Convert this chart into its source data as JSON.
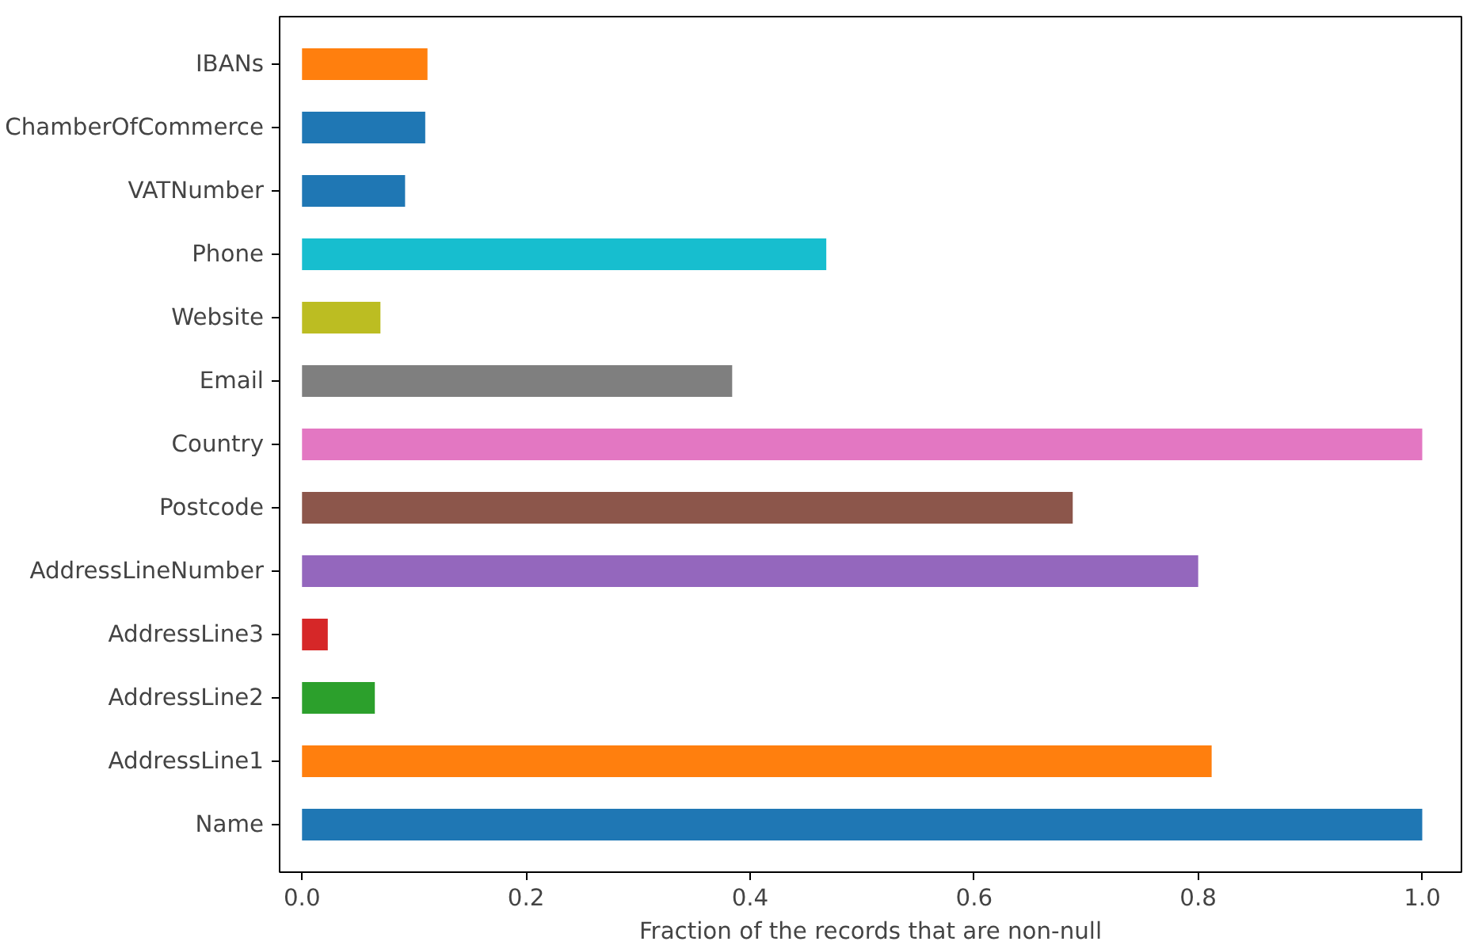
{
  "chart_data": {
    "type": "bar",
    "orientation": "horizontal",
    "xlabel": "Fraction of the records that are non-null",
    "categories": [
      "IBANs",
      "ChamberOfCommerce",
      "VATNumber",
      "Phone",
      "Website",
      "Email",
      "Country",
      "Postcode",
      "AddressLineNumber",
      "AddressLine3",
      "AddressLine2",
      "AddressLine1",
      "Name"
    ],
    "values": [
      0.112,
      0.11,
      0.092,
      0.468,
      0.07,
      0.384,
      1.0,
      0.688,
      0.8,
      0.023,
      0.065,
      0.812,
      1.0
    ],
    "colors": [
      "#ff7f0e",
      "#1f77b4",
      "#1f77b4",
      "#17becf",
      "#bcbd22",
      "#7f7f7f",
      "#e377c2",
      "#8c564b",
      "#9467bd",
      "#d62728",
      "#2ca02c",
      "#ff7f0e",
      "#1f77b4"
    ],
    "xlim": [
      -0.02,
      1.035
    ],
    "xticks": [
      {
        "value": 0,
        "label": "0.0"
      },
      {
        "value": 0.2,
        "label": "0.2"
      },
      {
        "value": 0.4,
        "label": "0.4"
      },
      {
        "value": 0.6,
        "label": "0.6"
      },
      {
        "value": 0.8,
        "label": "0.8"
      },
      {
        "value": 1.0,
        "label": "1.0"
      }
    ],
    "grid": false
  }
}
